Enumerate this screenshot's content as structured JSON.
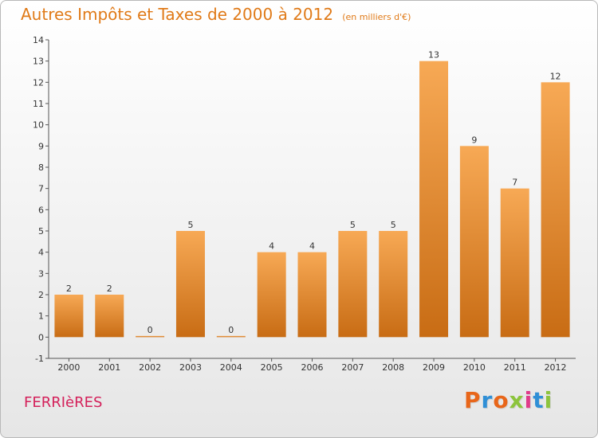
{
  "title": "Autres Impôts et Taxes de 2000 à 2012",
  "unit_note": "(en milliers d'€)",
  "commune": "FERRIèRES",
  "logo": {
    "letters": [
      "P",
      "r",
      "o",
      "x",
      "i",
      "t",
      "i"
    ],
    "colors": [
      "#e8661a",
      "#2f8fd6",
      "#e8661a",
      "#8cc43c",
      "#e03a8a",
      "#2f8fd6",
      "#8cc43c"
    ]
  },
  "colors": {
    "bar_top": "#f7a955",
    "bar_bottom": "#c86c14",
    "title": "#e07a18",
    "commune": "#d4205a"
  },
  "chart_data": {
    "type": "bar",
    "title": "Autres Impôts et Taxes de 2000 à 2012",
    "categories": [
      "2000",
      "2001",
      "2002",
      "2003",
      "2004",
      "2005",
      "2006",
      "2007",
      "2008",
      "2009",
      "2010",
      "2011",
      "2012"
    ],
    "values": [
      2,
      2,
      0,
      5,
      0,
      4,
      4,
      5,
      5,
      13,
      9,
      7,
      12
    ],
    "ylim": [
      -1,
      14
    ],
    "yticks": [
      "-1",
      "0",
      "1",
      "2",
      "3",
      "4",
      "5",
      "6",
      "7",
      "8",
      "9",
      "10",
      "11",
      "12",
      "13",
      "14"
    ],
    "grid": false,
    "xlabel": "",
    "ylabel": ""
  }
}
